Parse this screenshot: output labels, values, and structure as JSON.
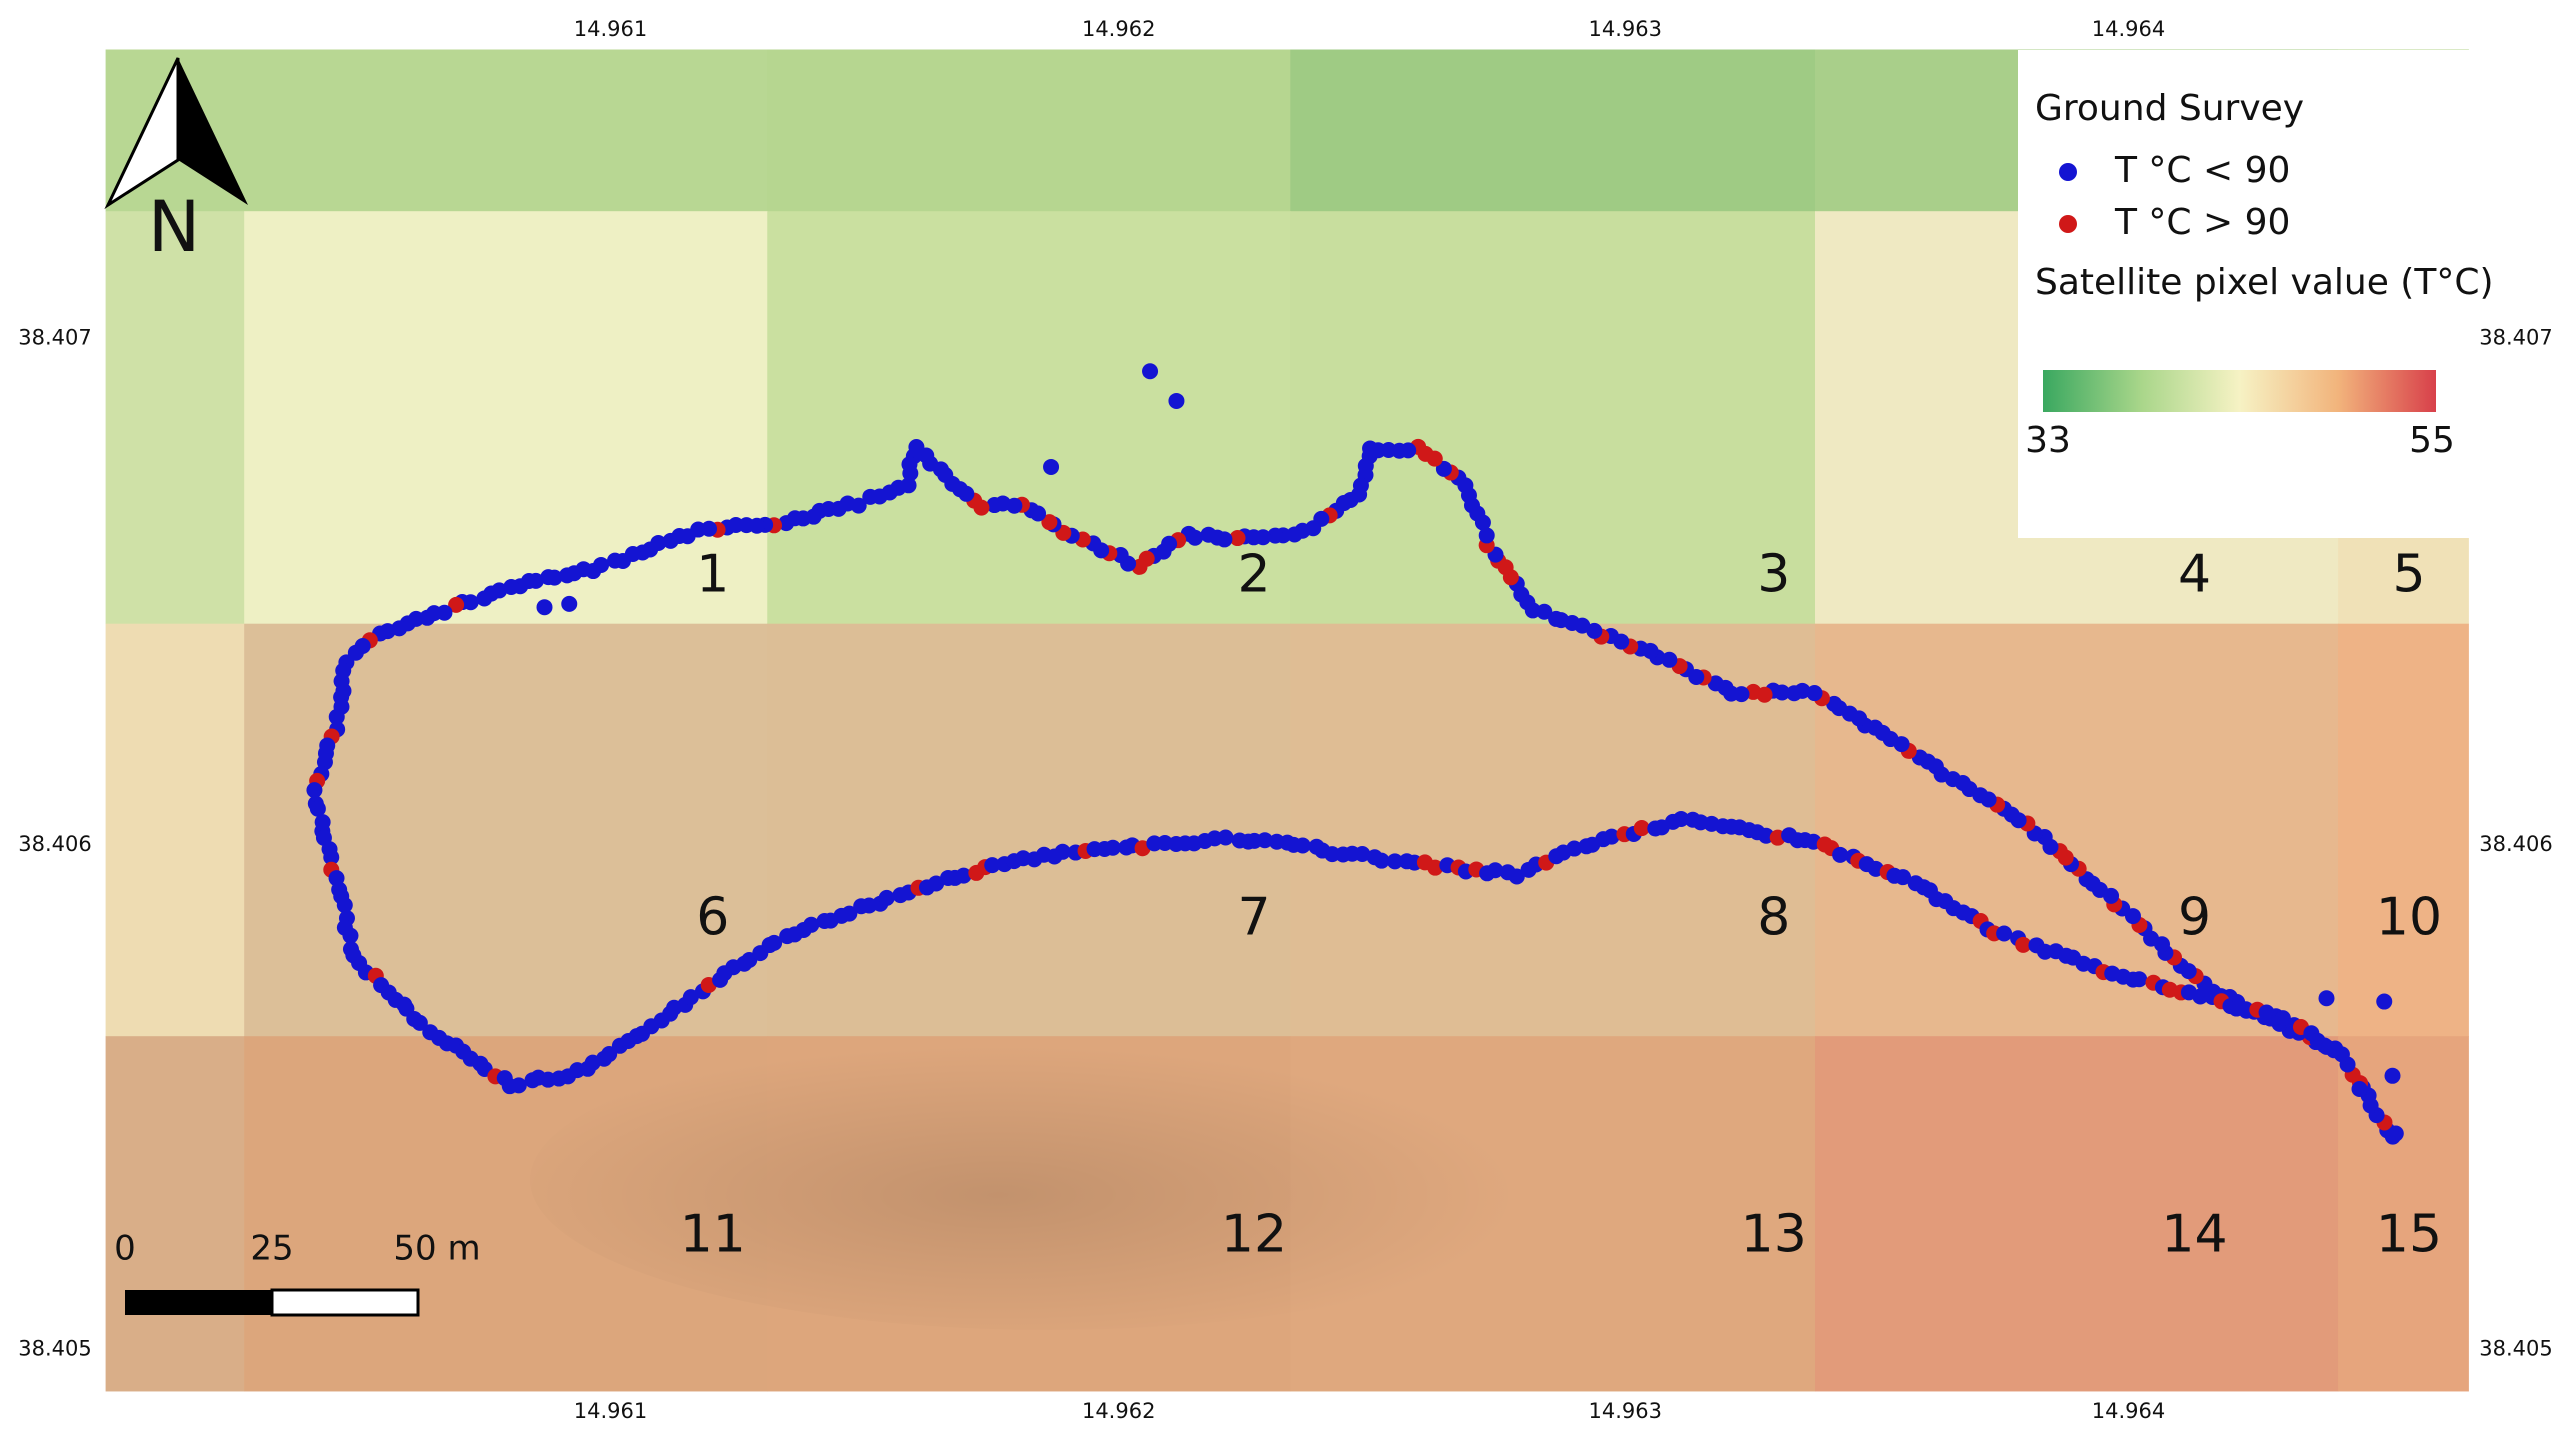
{
  "axes": {
    "top": [
      "14.961",
      "14.962",
      "14.963",
      "14.964"
    ],
    "bottom": [
      "14.961",
      "14.962",
      "14.963",
      "14.964"
    ],
    "left": [
      "38.407",
      "38.406",
      "38.405"
    ],
    "right": [
      "38.407",
      "38.406",
      "38.405"
    ]
  },
  "north": "N",
  "legend": {
    "title": "Ground Survey",
    "items": [
      {
        "label": "T °C < 90",
        "color": "#1414d2"
      },
      {
        "label": "T °C > 90",
        "color": "#d01818"
      }
    ],
    "colorbar_title": "Satellite pixel value (T°C)",
    "colorbar_min": "33",
    "colorbar_max": "55"
  },
  "pixels": [
    "1",
    "2",
    "3",
    "4",
    "5",
    "6",
    "7",
    "8",
    "9",
    "10",
    "11",
    "12",
    "13",
    "14",
    "15"
  ],
  "scalebar": [
    "0",
    "25",
    "50 m"
  ]
}
